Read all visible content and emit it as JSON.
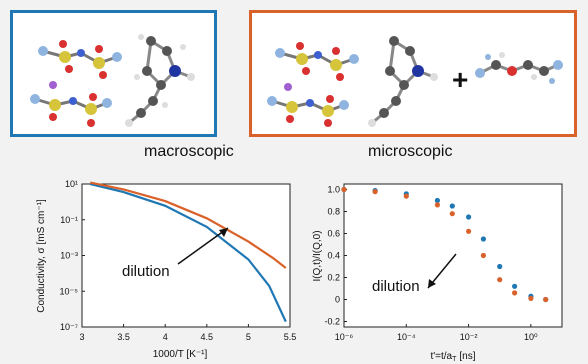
{
  "panels": {
    "macroscopic_label": "macroscopic",
    "microscopic_label": "microscopic",
    "plus_sign": "+"
  },
  "chart_data": [
    {
      "type": "line",
      "xlabel": "1000/T [K⁻¹]",
      "ylabel": "Conductivity, σ [mS cm⁻¹]",
      "yscale": "log",
      "xlim": [
        3,
        5.5
      ],
      "ylim": [
        1e-07,
        10
      ],
      "x_ticks": [
        "3",
        "3.5",
        "4",
        "4.5",
        "5",
        "5.5"
      ],
      "y_ticks": [
        "10¹",
        "10⁻¹",
        "10⁻³",
        "10⁻⁵",
        "10⁻⁷"
      ],
      "annotation": "dilution",
      "series": [
        {
          "color": "#1f77b4",
          "x": [
            3.1,
            3.5,
            4.0,
            4.5,
            5.0,
            5.25,
            5.45
          ],
          "y": [
            10,
            3.5,
            0.6,
            0.04,
            0.0006,
            2e-05,
            2e-07
          ]
        },
        {
          "color": "#d9622b",
          "x": [
            3.1,
            3.5,
            4.0,
            4.5,
            5.0,
            5.3,
            5.45
          ],
          "y": [
            12,
            5,
            1.1,
            0.12,
            0.006,
            0.0007,
            0.0002
          ]
        }
      ]
    },
    {
      "type": "scatter",
      "xlabel": "t'=t/a",
      "xlabel_sub": "T",
      "xlabel_unit": "[ns]",
      "ylabel": "I(Q,t)/I(Q,0)",
      "xscale": "log",
      "xlim": [
        1e-06,
        10
      ],
      "ylim": [
        -0.25,
        1.05
      ],
      "x_ticks": [
        "10⁻⁶",
        "10⁻⁴",
        "10⁻²",
        "10⁰"
      ],
      "y_ticks": [
        "1.0",
        "0.8",
        "0.6",
        "0.4",
        "0.2",
        "0",
        "-0.2"
      ],
      "annotation": "dilution",
      "series": [
        {
          "color": "#1f77b4",
          "x": [
            1e-06,
            1e-05,
            0.0001,
            0.001,
            0.003,
            0.01,
            0.03,
            0.1,
            0.3,
            1,
            3
          ],
          "y": [
            1.0,
            0.99,
            0.96,
            0.9,
            0.85,
            0.75,
            0.55,
            0.3,
            0.12,
            0.03,
            0.0
          ]
        },
        {
          "color": "#d9622b",
          "x": [
            1e-06,
            1e-05,
            0.0001,
            0.001,
            0.003,
            0.01,
            0.03,
            0.1,
            0.3,
            1,
            3
          ],
          "y": [
            1.0,
            0.98,
            0.94,
            0.86,
            0.78,
            0.62,
            0.4,
            0.18,
            0.06,
            0.01,
            0.0
          ]
        }
      ]
    }
  ]
}
